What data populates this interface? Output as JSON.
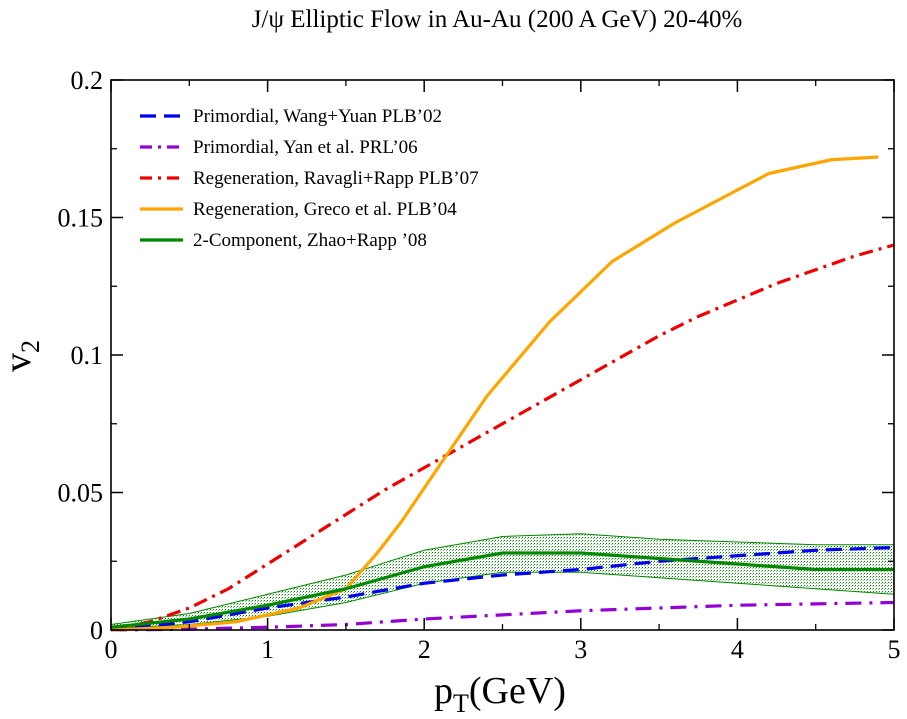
{
  "chart_data": {
    "type": "line",
    "title": "J/ψ  Elliptic Flow in Au-Au (200 A GeV) 20-40%",
    "xlabel": {
      "main": "p",
      "sub": "T",
      "rest": "(GeV)"
    },
    "ylabel": {
      "main": "v",
      "sub": "2"
    },
    "xlim": [
      0,
      5
    ],
    "ylim": [
      0,
      0.2
    ],
    "xticks": [
      "0",
      "1",
      "2",
      "3",
      "4",
      "5"
    ],
    "yticks": [
      "0",
      "0.05",
      "0.1",
      "0.15",
      "0.2"
    ],
    "legend_position": "top-left",
    "series": [
      {
        "name": "Primordial, Wang+Yuan PLB’02",
        "color": "#0000ee",
        "style": "dashed",
        "x": [
          0,
          0.5,
          1.0,
          1.5,
          2.0,
          2.5,
          3.0,
          3.5,
          4.0,
          4.5,
          5.0
        ],
        "y": [
          0,
          0.003,
          0.008,
          0.012,
          0.017,
          0.02,
          0.022,
          0.025,
          0.027,
          0.029,
          0.03
        ]
      },
      {
        "name": "Primordial, Yan et al. PRL’06",
        "color": "#9400d3",
        "style": "dashdot",
        "x": [
          0,
          0.5,
          1.0,
          1.5,
          2.0,
          2.5,
          3.0,
          3.5,
          4.0,
          4.5,
          5.0
        ],
        "y": [
          0,
          0.0003,
          0.001,
          0.002,
          0.004,
          0.0055,
          0.007,
          0.008,
          0.009,
          0.0095,
          0.01
        ]
      },
      {
        "name": "Regeneration, Ravagli+Rapp PLB’07",
        "color": "#ee0000",
        "style": "dashdotdot",
        "x": [
          0,
          0.25,
          0.5,
          0.75,
          1.0,
          1.25,
          1.5,
          1.75,
          2.0,
          2.25,
          2.5,
          2.75,
          3.0,
          3.25,
          3.5,
          3.75,
          4.0,
          4.25,
          4.5,
          4.75,
          5.0
        ],
        "y": [
          0,
          0.003,
          0.008,
          0.015,
          0.024,
          0.033,
          0.042,
          0.051,
          0.059,
          0.067,
          0.075,
          0.083,
          0.091,
          0.099,
          0.107,
          0.114,
          0.12,
          0.126,
          0.131,
          0.136,
          0.14
        ]
      },
      {
        "name": "Regeneration, Greco et al. PLB’04",
        "color": "#ffa500",
        "style": "solid",
        "x": [
          0,
          0.4,
          0.8,
          1.2,
          1.5,
          1.7,
          1.85,
          2.1,
          2.4,
          2.8,
          3.2,
          3.6,
          3.9,
          4.2,
          4.6,
          4.9
        ],
        "y": [
          0,
          0.001,
          0.003,
          0.008,
          0.015,
          0.028,
          0.039,
          0.06,
          0.085,
          0.112,
          0.134,
          0.148,
          0.157,
          0.166,
          0.171,
          0.172
        ]
      },
      {
        "name": "2-Component, Zhao+Rapp ’08",
        "color": "#008800",
        "style": "solid",
        "x": [
          0,
          0.5,
          1.0,
          1.5,
          2.0,
          2.5,
          3.0,
          3.5,
          4.0,
          4.5,
          5.0
        ],
        "y": [
          0.001,
          0.004,
          0.009,
          0.015,
          0.023,
          0.028,
          0.028,
          0.026,
          0.024,
          0.022,
          0.022
        ],
        "band_upper": [
          0.002,
          0.006,
          0.013,
          0.02,
          0.029,
          0.034,
          0.035,
          0.033,
          0.032,
          0.031,
          0.031
        ],
        "band_lower": [
          0.0005,
          0.002,
          0.005,
          0.01,
          0.017,
          0.021,
          0.021,
          0.019,
          0.017,
          0.015,
          0.013
        ]
      }
    ]
  }
}
